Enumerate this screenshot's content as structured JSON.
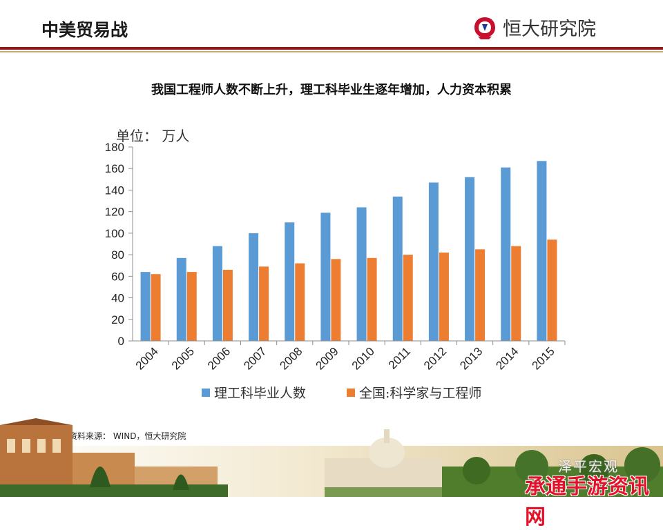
{
  "header": {
    "title": "中美贸易战",
    "brand": "恒大研究院"
  },
  "chart_data": {
    "type": "bar",
    "title": "我国工程师人数不断上升，理工科毕业生逐年增加，人力资本积累",
    "unit_label": "单位：  万人",
    "categories": [
      "2004",
      "2005",
      "2006",
      "2007",
      "2008",
      "2009",
      "2010",
      "2011",
      "2012",
      "2013",
      "2014",
      "2015"
    ],
    "series": [
      {
        "name": "理工科毕业人数",
        "color": "#5b9bd5",
        "values": [
          64,
          77,
          88,
          100,
          110,
          119,
          124,
          134,
          147,
          152,
          161,
          167
        ]
      },
      {
        "name": "全国:科学家与工程师",
        "color": "#ed7d31",
        "values": [
          62,
          64,
          66,
          69,
          72,
          76,
          77,
          80,
          82,
          85,
          88,
          94
        ]
      }
    ],
    "ylim": [
      0,
      180
    ],
    "yticks": [
      0,
      20,
      40,
      60,
      80,
      100,
      120,
      140,
      160,
      180
    ],
    "grid": false,
    "legend": "bottom"
  },
  "source_note": "资料来源：  WIND，恒大研究院",
  "watermark": {
    "channel": "泽平宏观",
    "site": "承通手游资讯网"
  },
  "colors": {
    "header_rule": "#8b1a1a",
    "header_rule_gold": "#c9a86a",
    "logo_red": "#c8102e",
    "watermark_red": "#e3122b"
  }
}
